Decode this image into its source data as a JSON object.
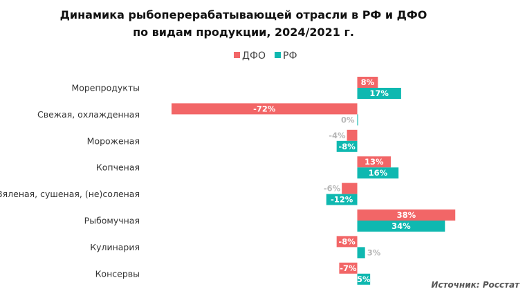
{
  "chart_data": {
    "type": "bar",
    "orientation": "horizontal",
    "title_lines": [
      "Динамика  рыбоперерабатывающей  отрасли в РФ и ДФО",
      "по видам продукции, 2024/2021  г."
    ],
    "legend_position": "top-center",
    "categories": [
      "Морепродукты",
      "Свежая,  охлажденная",
      "Мороженая",
      "Копченая",
      "Вяленая,  сушеная, (не)соленая",
      "Рыбомучная",
      "Кулинария",
      "Консервы"
    ],
    "series": [
      {
        "name": "ДФО",
        "color": "#F26667",
        "values": [
          8,
          -72,
          -4,
          13,
          -6,
          38,
          -8,
          -7
        ],
        "labels": [
          "8%",
          "-72%",
          "-4%",
          "13%",
          "-6%",
          "38%",
          "-8%",
          "-7%"
        ]
      },
      {
        "name": "РФ",
        "color": "#0FB8B0",
        "values": [
          17,
          0,
          -8,
          16,
          -12,
          34,
          3,
          5
        ],
        "labels": [
          "17%",
          "0%",
          "-8%",
          "16%",
          "-12%",
          "34%",
          "3%",
          "5%"
        ]
      }
    ],
    "xlim": [
      -72,
      38
    ],
    "grid": false,
    "label_colors": {
      "inside": "#ffffff",
      "outside": "#b7b7b7"
    }
  },
  "source_text": "Источник: Росстат"
}
